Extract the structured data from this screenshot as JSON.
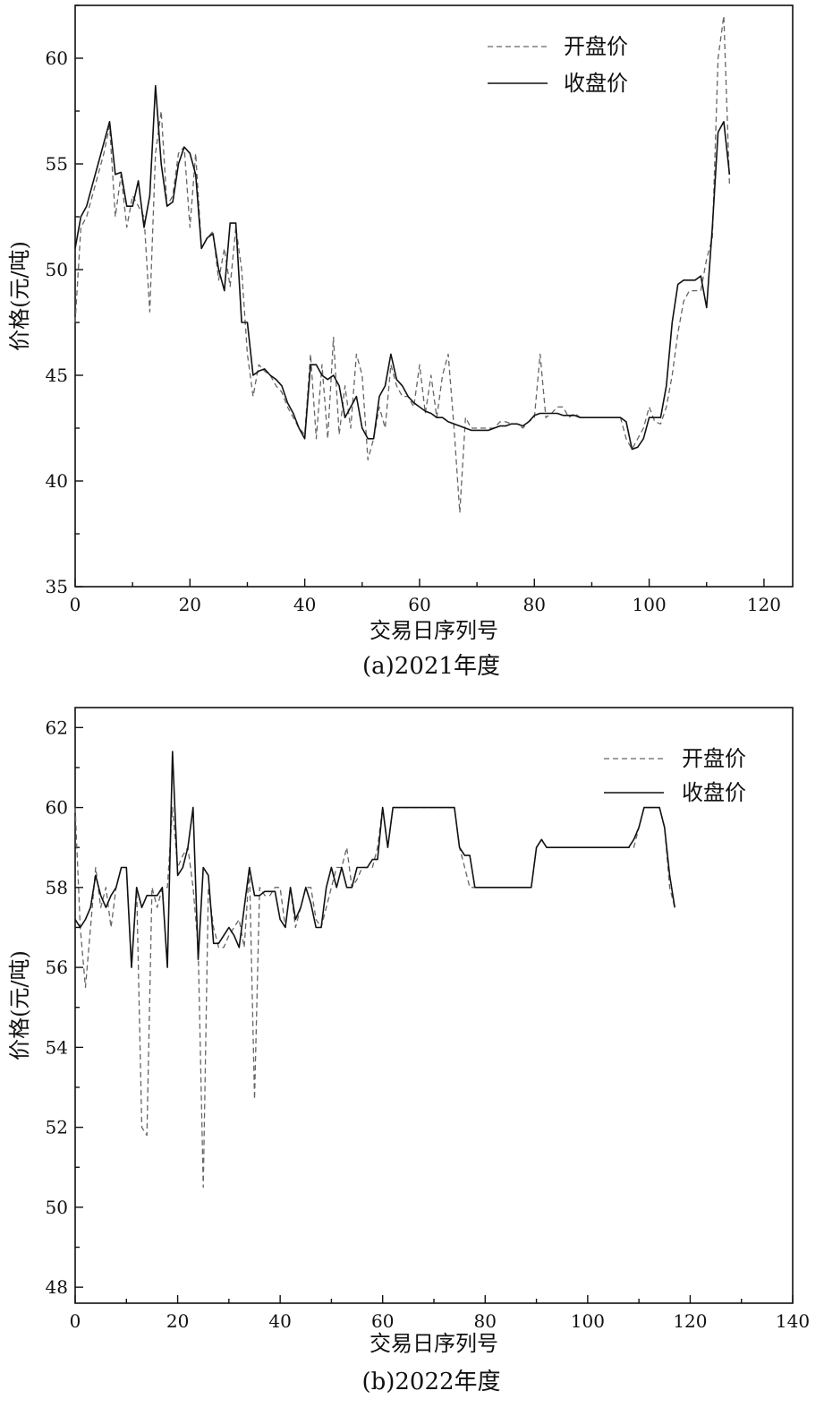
{
  "chart_data": [
    {
      "type": "line",
      "caption": "(a)2021年度",
      "xlabel": "交易日序列号",
      "ylabel": "价格(元/吨)",
      "xlim": [
        0,
        125
      ],
      "ylim": [
        35,
        62.5
      ],
      "xticks": [
        0,
        20,
        40,
        60,
        80,
        100,
        120
      ],
      "yticks": [
        35,
        40,
        45,
        50,
        55,
        60
      ],
      "grid": false,
      "legend_position": "top-right",
      "series": [
        {
          "name": "开盘价",
          "style": "dashed",
          "color": "#666666",
          "x": [
            0,
            1,
            2,
            3,
            4,
            5,
            6,
            7,
            8,
            9,
            10,
            11,
            12,
            13,
            14,
            15,
            16,
            17,
            18,
            19,
            20,
            21,
            22,
            23,
            24,
            25,
            26,
            27,
            28,
            29,
            30,
            31,
            32,
            33,
            34,
            35,
            36,
            37,
            38,
            39,
            40,
            41,
            42,
            43,
            44,
            45,
            46,
            47,
            48,
            49,
            50,
            51,
            52,
            53,
            54,
            55,
            56,
            57,
            58,
            59,
            60,
            61,
            62,
            63,
            64,
            65,
            66,
            67,
            68,
            69,
            70,
            71,
            72,
            73,
            74,
            75,
            76,
            77,
            78,
            79,
            80,
            81,
            82,
            83,
            84,
            85,
            86,
            87,
            88,
            89,
            90,
            91,
            92,
            93,
            94,
            95,
            96,
            97,
            98,
            99,
            100,
            101,
            102,
            103,
            104,
            105,
            106,
            107,
            108,
            109,
            110,
            111,
            112,
            113,
            114
          ],
          "values": [
            47.5,
            52.0,
            52.5,
            53.5,
            54.5,
            55.5,
            56.8,
            52.5,
            54.5,
            52.0,
            53.5,
            53.0,
            52.5,
            48.0,
            55.5,
            57.5,
            53.0,
            53.5,
            55.5,
            55.8,
            52.0,
            55.5,
            51.0,
            51.5,
            51.8,
            49.5,
            51.0,
            49.2,
            52.0,
            50.0,
            46.0,
            44.0,
            45.5,
            45.2,
            45.0,
            44.5,
            44.2,
            43.5,
            43.0,
            42.5,
            42.2,
            46.0,
            42.0,
            45.5,
            42.0,
            46.8,
            42.2,
            44.5,
            42.5,
            46.0,
            45.0,
            41.0,
            42.0,
            43.5,
            42.5,
            45.5,
            44.5,
            44.0,
            44.0,
            43.5,
            45.5,
            43.2,
            45.0,
            43.0,
            45.0,
            46.0,
            42.5,
            38.5,
            43.0,
            42.5,
            42.5,
            42.5,
            42.5,
            42.5,
            42.8,
            42.8,
            42.7,
            42.7,
            42.5,
            42.8,
            43.0,
            46.0,
            43.0,
            43.2,
            43.5,
            43.5,
            43.0,
            43.2,
            43.0,
            43.0,
            43.0,
            43.0,
            43.0,
            43.0,
            43.0,
            43.0,
            42.0,
            41.5,
            42.0,
            42.5,
            43.5,
            42.8,
            42.7,
            43.5,
            45.0,
            47.0,
            48.5,
            49.0,
            49.0,
            49.0,
            50.5,
            51.5,
            60.0,
            62.0,
            54.0
          ]
        },
        {
          "name": "收盘价",
          "style": "solid",
          "color": "#111111",
          "x": [
            0,
            1,
            2,
            3,
            4,
            5,
            6,
            7,
            8,
            9,
            10,
            11,
            12,
            13,
            14,
            15,
            16,
            17,
            18,
            19,
            20,
            21,
            22,
            23,
            24,
            25,
            26,
            27,
            28,
            29,
            30,
            31,
            32,
            33,
            34,
            35,
            36,
            37,
            38,
            39,
            40,
            41,
            42,
            43,
            44,
            45,
            46,
            47,
            48,
            49,
            50,
            51,
            52,
            53,
            54,
            55,
            56,
            57,
            58,
            59,
            60,
            61,
            62,
            63,
            64,
            65,
            66,
            67,
            68,
            69,
            70,
            71,
            72,
            73,
            74,
            75,
            76,
            77,
            78,
            79,
            80,
            81,
            82,
            83,
            84,
            85,
            86,
            87,
            88,
            89,
            90,
            91,
            92,
            93,
            94,
            95,
            96,
            97,
            98,
            99,
            100,
            101,
            102,
            103,
            104,
            105,
            106,
            107,
            108,
            109,
            110,
            111,
            112,
            113,
            114
          ],
          "values": [
            51.0,
            52.5,
            53.0,
            54.0,
            55.0,
            56.0,
            57.0,
            54.5,
            54.6,
            53.0,
            53.0,
            54.2,
            52.0,
            53.5,
            58.7,
            55.0,
            53.0,
            53.2,
            55.0,
            55.8,
            55.5,
            54.5,
            51.0,
            51.5,
            51.7,
            50.0,
            49.0,
            52.2,
            52.2,
            47.5,
            47.5,
            45.0,
            45.2,
            45.3,
            45.0,
            44.8,
            44.5,
            43.7,
            43.2,
            42.5,
            42.0,
            45.5,
            45.5,
            45.0,
            44.8,
            45.0,
            44.5,
            43.0,
            43.5,
            44.0,
            42.5,
            42.0,
            42.0,
            44.0,
            44.5,
            46.0,
            44.8,
            44.5,
            44.0,
            43.7,
            43.5,
            43.3,
            43.2,
            43.0,
            43.0,
            42.8,
            42.7,
            42.6,
            42.5,
            42.4,
            42.4,
            42.4,
            42.4,
            42.5,
            42.6,
            42.6,
            42.7,
            42.7,
            42.6,
            42.8,
            43.1,
            43.2,
            43.2,
            43.2,
            43.2,
            43.1,
            43.1,
            43.1,
            43.0,
            43.0,
            43.0,
            43.0,
            43.0,
            43.0,
            43.0,
            43.0,
            42.8,
            41.5,
            41.6,
            42.0,
            43.0,
            43.0,
            43.0,
            44.5,
            47.5,
            49.3,
            49.5,
            49.5,
            49.5,
            49.7,
            48.2,
            52.0,
            56.5,
            57.0,
            54.5
          ]
        }
      ]
    },
    {
      "type": "line",
      "caption": "(b)2022年度",
      "xlabel": "交易日序列号",
      "ylabel": "价格(元/吨)",
      "xlim": [
        0,
        140
      ],
      "ylim": [
        47.6,
        62.5
      ],
      "xticks": [
        0,
        20,
        40,
        60,
        80,
        100,
        120,
        140
      ],
      "yticks": [
        48,
        50,
        52,
        54,
        56,
        58,
        60,
        62
      ],
      "grid": false,
      "legend_position": "top-right",
      "series": [
        {
          "name": "开盘价",
          "style": "dashed",
          "color": "#666666",
          "x": [
            0,
            1,
            2,
            3,
            4,
            5,
            6,
            7,
            8,
            9,
            10,
            11,
            12,
            13,
            14,
            15,
            16,
            17,
            18,
            19,
            20,
            21,
            22,
            23,
            24,
            25,
            26,
            27,
            28,
            29,
            30,
            31,
            32,
            33,
            34,
            35,
            36,
            37,
            38,
            39,
            40,
            41,
            42,
            43,
            44,
            45,
            46,
            47,
            48,
            49,
            50,
            51,
            52,
            53,
            54,
            55,
            56,
            57,
            58,
            59,
            60,
            61,
            62,
            63,
            64,
            65,
            66,
            67,
            68,
            69,
            70,
            71,
            72,
            73,
            74,
            75,
            76,
            77,
            78,
            79,
            80,
            81,
            82,
            83,
            84,
            85,
            86,
            87,
            88,
            89,
            90,
            91,
            92,
            93,
            94,
            95,
            96,
            97,
            98,
            99,
            100,
            101,
            102,
            103,
            104,
            105,
            106,
            107,
            108,
            109,
            110,
            111,
            112,
            113,
            114,
            115,
            116,
            117
          ],
          "values": [
            60.0,
            57.0,
            55.5,
            57.0,
            58.5,
            57.5,
            58.0,
            57.0,
            58.0,
            58.5,
            58.5,
            56.0,
            58.0,
            52.0,
            51.8,
            58.0,
            57.5,
            58.0,
            58.0,
            60.0,
            58.5,
            58.8,
            59.0,
            58.0,
            56.5,
            50.5,
            58.0,
            57.0,
            56.5,
            56.5,
            56.8,
            57.0,
            57.2,
            56.5,
            58.5,
            52.7,
            58.0,
            57.8,
            57.8,
            58.0,
            58.0,
            57.0,
            58.0,
            57.0,
            57.5,
            58.0,
            58.0,
            57.2,
            57.0,
            57.5,
            58.0,
            58.5,
            58.5,
            59.0,
            58.0,
            58.2,
            58.5,
            58.5,
            58.5,
            59.0,
            60.0,
            59.0,
            60.0,
            60.0,
            60.0,
            60.0,
            60.0,
            60.0,
            60.0,
            60.0,
            60.0,
            60.0,
            60.0,
            60.0,
            60.0,
            59.0,
            58.5,
            58.0,
            58.0,
            58.0,
            58.0,
            58.0,
            58.0,
            58.0,
            58.0,
            58.0,
            58.0,
            58.0,
            58.0,
            58.0,
            59.0,
            59.2,
            59.0,
            59.0,
            59.0,
            59.0,
            59.0,
            59.0,
            59.0,
            59.0,
            59.0,
            59.0,
            59.0,
            59.0,
            59.0,
            59.0,
            59.0,
            59.0,
            59.0,
            59.0,
            59.5,
            60.0,
            60.0,
            60.0,
            60.0,
            59.5,
            58.0,
            57.5
          ]
        },
        {
          "name": "收盘价",
          "style": "solid",
          "color": "#111111",
          "x": [
            0,
            1,
            2,
            3,
            4,
            5,
            6,
            7,
            8,
            9,
            10,
            11,
            12,
            13,
            14,
            15,
            16,
            17,
            18,
            19,
            20,
            21,
            22,
            23,
            24,
            25,
            26,
            27,
            28,
            29,
            30,
            31,
            32,
            33,
            34,
            35,
            36,
            37,
            38,
            39,
            40,
            41,
            42,
            43,
            44,
            45,
            46,
            47,
            48,
            49,
            50,
            51,
            52,
            53,
            54,
            55,
            56,
            57,
            58,
            59,
            60,
            61,
            62,
            63,
            64,
            65,
            66,
            67,
            68,
            69,
            70,
            71,
            72,
            73,
            74,
            75,
            76,
            77,
            78,
            79,
            80,
            81,
            82,
            83,
            84,
            85,
            86,
            87,
            88,
            89,
            90,
            91,
            92,
            93,
            94,
            95,
            96,
            97,
            98,
            99,
            100,
            101,
            102,
            103,
            104,
            105,
            106,
            107,
            108,
            109,
            110,
            111,
            112,
            113,
            114,
            115,
            116,
            117
          ],
          "values": [
            57.2,
            57.0,
            57.2,
            57.5,
            58.3,
            57.8,
            57.5,
            57.8,
            58.0,
            58.5,
            58.5,
            56.0,
            58.0,
            57.5,
            57.8,
            57.8,
            57.8,
            58.0,
            56.0,
            61.4,
            58.3,
            58.5,
            59.0,
            60.0,
            56.2,
            58.5,
            58.3,
            56.6,
            56.6,
            56.8,
            57.0,
            56.8,
            56.5,
            57.5,
            58.5,
            57.8,
            57.8,
            57.9,
            57.9,
            57.9,
            57.2,
            57.0,
            58.0,
            57.2,
            57.5,
            58.0,
            57.6,
            57.0,
            57.0,
            58.0,
            58.5,
            58.0,
            58.5,
            58.0,
            58.0,
            58.5,
            58.5,
            58.5,
            58.7,
            58.7,
            60.0,
            59.0,
            60.0,
            60.0,
            60.0,
            60.0,
            60.0,
            60.0,
            60.0,
            60.0,
            60.0,
            60.0,
            60.0,
            60.0,
            60.0,
            59.0,
            58.8,
            58.8,
            58.0,
            58.0,
            58.0,
            58.0,
            58.0,
            58.0,
            58.0,
            58.0,
            58.0,
            58.0,
            58.0,
            58.0,
            59.0,
            59.2,
            59.0,
            59.0,
            59.0,
            59.0,
            59.0,
            59.0,
            59.0,
            59.0,
            59.0,
            59.0,
            59.0,
            59.0,
            59.0,
            59.0,
            59.0,
            59.0,
            59.0,
            59.2,
            59.5,
            60.0,
            60.0,
            60.0,
            60.0,
            59.5,
            58.3,
            57.5
          ]
        }
      ]
    }
  ]
}
